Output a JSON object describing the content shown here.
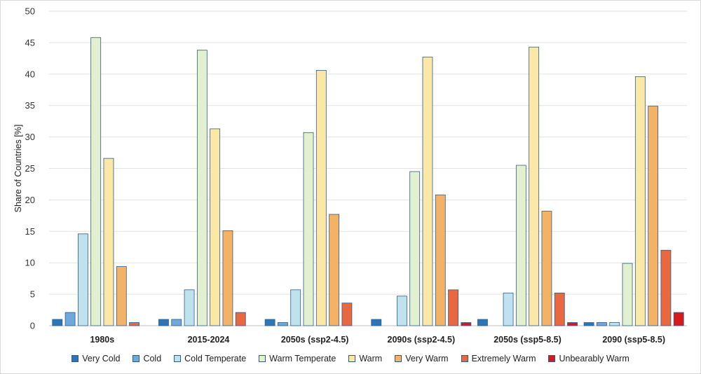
{
  "chart_data": {
    "type": "bar",
    "title": "",
    "xlabel": "",
    "ylabel": "Share of Countries [%]",
    "ylim": [
      0,
      50
    ],
    "yticks": [
      0,
      5,
      10,
      15,
      20,
      25,
      30,
      35,
      40,
      45,
      50
    ],
    "grid": true,
    "legend_position": "bottom",
    "categories": [
      "1980s",
      "2015-2024",
      "2050s (ssp2-4.5)",
      "2090s (ssp2-4.5)",
      "2050s (ssp5-8.5)",
      "2090 (ssp5-8.5)"
    ],
    "series": [
      {
        "name": "Very Cold",
        "color": "#2e75b6",
        "values": [
          1.0,
          1.0,
          1.0,
          1.0,
          1.0,
          0.5
        ]
      },
      {
        "name": "Cold",
        "color": "#6fa8dc",
        "values": [
          2.1,
          1.0,
          0.5,
          0,
          0,
          0.5
        ]
      },
      {
        "name": "Cold Temperate",
        "color": "#bfe3ee",
        "values": [
          14.6,
          5.7,
          5.7,
          4.7,
          5.2,
          0.5
        ]
      },
      {
        "name": "Warm Temperate",
        "color": "#e2f0d0",
        "values": [
          45.8,
          43.8,
          30.7,
          24.5,
          25.5,
          9.9
        ]
      },
      {
        "name": "Warm",
        "color": "#fbe8a6",
        "values": [
          26.6,
          31.3,
          40.6,
          42.7,
          44.3,
          39.6
        ]
      },
      {
        "name": "Very Warm",
        "color": "#f4b266",
        "values": [
          9.4,
          15.1,
          17.7,
          20.8,
          18.2,
          34.9
        ]
      },
      {
        "name": "Extremely Warm",
        "color": "#e9683f",
        "values": [
          0.5,
          2.1,
          3.6,
          5.7,
          5.2,
          12.0
        ]
      },
      {
        "name": "Unbearably Warm",
        "color": "#d7191c",
        "values": [
          0,
          0,
          0,
          0.5,
          0.5,
          2.1
        ]
      }
    ]
  }
}
